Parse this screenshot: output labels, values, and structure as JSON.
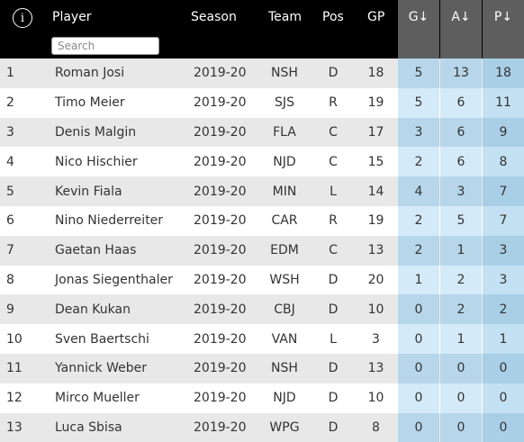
{
  "header": {
    "player": "Player",
    "season": "Season",
    "team": "Team",
    "pos": "Pos",
    "gp": "GP",
    "g": "G↓",
    "a": "A↓",
    "p": "P↓",
    "search_placeholder": "Search"
  },
  "rows": [
    {
      "rank": "1",
      "player": "Roman Josi",
      "season": "2019-20",
      "team": "NSH",
      "pos": "D",
      "gp": "18",
      "g": "5",
      "a": "13",
      "p": "18"
    },
    {
      "rank": "2",
      "player": "Timo Meier",
      "season": "2019-20",
      "team": "SJS",
      "pos": "R",
      "gp": "19",
      "g": "5",
      "a": "6",
      "p": "11"
    },
    {
      "rank": "3",
      "player": "Denis Malgin",
      "season": "2019-20",
      "team": "FLA",
      "pos": "C",
      "gp": "17",
      "g": "3",
      "a": "6",
      "p": "9"
    },
    {
      "rank": "4",
      "player": "Nico Hischier",
      "season": "2019-20",
      "team": "NJD",
      "pos": "C",
      "gp": "15",
      "g": "2",
      "a": "6",
      "p": "8"
    },
    {
      "rank": "5",
      "player": "Kevin Fiala",
      "season": "2019-20",
      "team": "MIN",
      "pos": "L",
      "gp": "14",
      "g": "4",
      "a": "3",
      "p": "7"
    },
    {
      "rank": "6",
      "player": "Nino Niederreiter",
      "season": "2019-20",
      "team": "CAR",
      "pos": "R",
      "gp": "19",
      "g": "2",
      "a": "5",
      "p": "7"
    },
    {
      "rank": "7",
      "player": "Gaetan Haas",
      "season": "2019-20",
      "team": "EDM",
      "pos": "C",
      "gp": "13",
      "g": "2",
      "a": "1",
      "p": "3"
    },
    {
      "rank": "8",
      "player": "Jonas Siegenthaler",
      "season": "2019-20",
      "team": "WSH",
      "pos": "D",
      "gp": "20",
      "g": "1",
      "a": "2",
      "p": "3"
    },
    {
      "rank": "9",
      "player": "Dean Kukan",
      "season": "2019-20",
      "team": "CBJ",
      "pos": "D",
      "gp": "10",
      "g": "0",
      "a": "2",
      "p": "2"
    },
    {
      "rank": "10",
      "player": "Sven Baertschi",
      "season": "2019-20",
      "team": "VAN",
      "pos": "L",
      "gp": "3",
      "g": "0",
      "a": "1",
      "p": "1"
    },
    {
      "rank": "11",
      "player": "Yannick Weber",
      "season": "2019-20",
      "team": "NSH",
      "pos": "D",
      "gp": "13",
      "g": "0",
      "a": "0",
      "p": "0"
    },
    {
      "rank": "12",
      "player": "Mirco Mueller",
      "season": "2019-20",
      "team": "NJD",
      "pos": "D",
      "gp": "10",
      "g": "0",
      "a": "0",
      "p": "0"
    },
    {
      "rank": "13",
      "player": "Luca Sbisa",
      "season": "2019-20",
      "team": "WPG",
      "pos": "D",
      "gp": "8",
      "g": "0",
      "a": "0",
      "p": "0"
    }
  ],
  "icons": {
    "info": "info-icon"
  },
  "colors": {
    "header_bg": "#000000",
    "sorted_header_bg": "#5e5e5e",
    "row_alt": "#e8e8e8",
    "stat_highlight": "#b7d6ea"
  }
}
